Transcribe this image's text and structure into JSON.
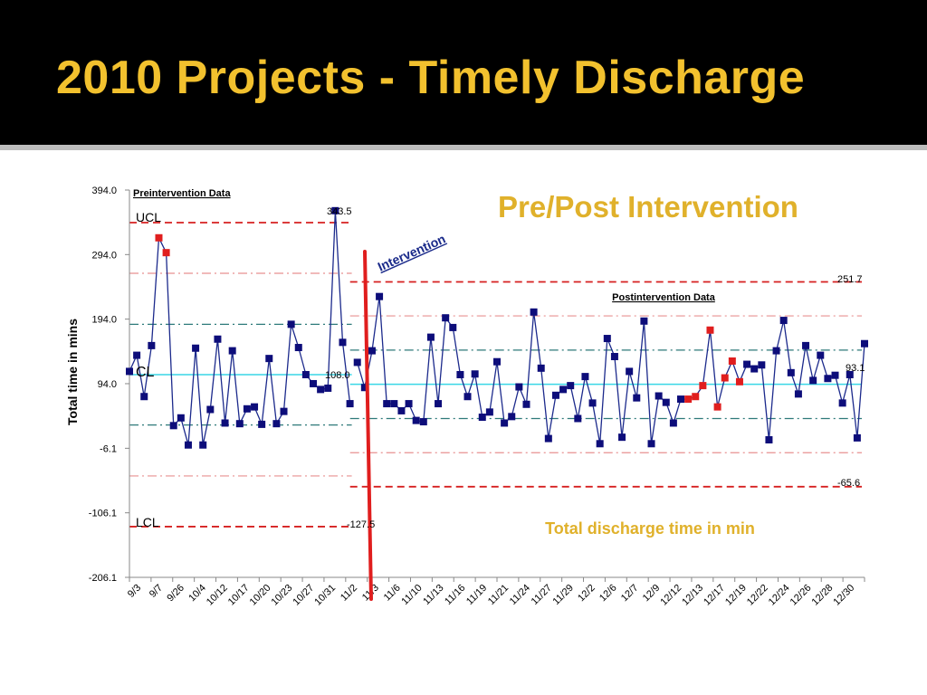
{
  "slide": {
    "title": "2010 Projects -  Timely Discharge",
    "title_color": "#f2c12e"
  },
  "chart_data": {
    "type": "line",
    "ylabel": "Total time in mins",
    "title": "Pre/Post Intervention",
    "title_color": "#e0b12b",
    "bottom_caption": "Total discharge time in min",
    "ylim": [
      -206.1,
      394.0
    ],
    "y_ticks": [
      "394.0",
      "294.0",
      "194.0",
      "94.0",
      "-6.1",
      "-106.1",
      "-206.1"
    ],
    "x_tick_labels": [
      "9/3",
      "9/7",
      "9/26",
      "10/4",
      "10/12",
      "10/17",
      "10/20",
      "10/23",
      "10/27",
      "10/31",
      "11/2",
      "11/3",
      "11/6",
      "11/10",
      "11/13",
      "11/16",
      "11/19",
      "11/21",
      "11/24",
      "11/27",
      "11/29",
      "12/2",
      "12/6",
      "12/7",
      "12/9",
      "12/12",
      "12/13",
      "12/17",
      "12/19",
      "12/22",
      "12/24",
      "12/26",
      "12/28",
      "12/30"
    ],
    "annotations": {
      "pre_label": "Preintervention Data",
      "post_label": "Postintervention Data",
      "intervention": "Intervention",
      "ucl_label": "UCL",
      "cl_label": "CL",
      "lcl_label": "LCL",
      "pre_ucl_value": "343.5",
      "pre_cl_value": "108.0",
      "pre_lcl_value": "-127.5",
      "post_ucl_value": "251.7",
      "post_cl_value": "93.1",
      "post_lcl_value": "-65.6"
    },
    "limits": {
      "pre": {
        "ucl": 343.5,
        "cl": 108.0,
        "lcl": -127.5,
        "upper_2s": 265,
        "lower_2s": -49,
        "upper_1s": 186,
        "lower_1s": 30
      },
      "post": {
        "ucl": 251.7,
        "cl": 93.1,
        "lcl": -65.6,
        "upper_2s": 199,
        "lower_2s": -13,
        "upper_1s": 146,
        "lower_1s": 40
      }
    },
    "colors": {
      "line": "#1c2a8c",
      "marker": "#0d0d7a",
      "out_of_control": "#e01e1e",
      "ucl_lcl": "#d62020",
      "sigma2": "#e89090",
      "sigma1": "#2e7a7a",
      "center": "#39d6e6",
      "intervention": "#e01e1e"
    },
    "series": [
      {
        "values": [
          113,
          138,
          74,
          153,
          320,
          297,
          29,
          41,
          -1,
          149,
          -1,
          54,
          163,
          33,
          145,
          32,
          55,
          58,
          31,
          133,
          32,
          51,
          186,
          150,
          108,
          94,
          85,
          87,
          362,
          158,
          63
        ]
      },
      {
        "values": [
          127,
          88,
          145,
          229,
          63,
          63,
          52,
          63,
          37,
          35,
          166,
          63,
          196,
          181,
          108,
          74,
          109,
          42,
          50,
          128,
          33,
          43,
          89,
          62,
          205,
          118,
          9,
          76,
          85,
          91,
          40,
          105,
          64,
          1,
          164,
          136,
          11,
          113,
          72,
          191,
          1,
          75,
          65,
          33,
          70,
          70,
          74,
          91,
          177,
          58,
          103,
          129,
          97,
          124,
          117,
          123,
          7,
          145,
          192,
          111,
          78,
          153,
          99,
          138,
          102,
          107,
          64,
          108,
          10,
          156
        ],
        "highlight": [
          45,
          46,
          47,
          48,
          49,
          50,
          51,
          52
        ]
      }
    ]
  }
}
